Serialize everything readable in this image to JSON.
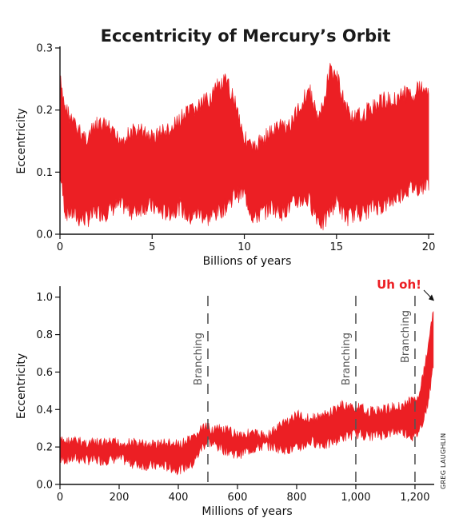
{
  "colors": {
    "series": "#ec1f24",
    "axis": "#111111",
    "marker": "#555555",
    "text": "#1a1a1a"
  },
  "credit": "GREG LAUGHLIN",
  "chart_data": [
    {
      "type": "area",
      "title": "Eccentricity of Mercury’s Orbit",
      "xlabel": "Billions of years",
      "ylabel": "Eccentricity",
      "xlim": [
        0,
        20.3
      ],
      "ylim": [
        0,
        0.3
      ],
      "xticks": [
        0,
        5,
        10,
        15,
        20
      ],
      "xtick_labels": [
        "0",
        "5",
        "10",
        "15",
        "20"
      ],
      "yticks": [
        0,
        0.1,
        0.2,
        0.3
      ],
      "ytick_labels": [
        "0.0",
        "0.1",
        "0.2",
        "0.3"
      ],
      "grid": false,
      "series": [
        {
          "x": [
            0,
            0.1,
            0.3,
            0.6,
            1,
            1.5,
            2,
            2.5,
            3,
            3.5,
            4,
            4.5,
            5,
            5.5,
            6,
            6.5,
            7,
            7.5,
            8,
            8.5,
            9,
            9.5,
            10,
            10.5,
            11,
            11.5,
            12,
            12.5,
            13,
            13.5,
            14,
            14.3,
            14.6,
            15,
            15.5,
            16,
            16.5,
            17,
            17.5,
            18,
            18.5,
            19,
            19.5,
            20
          ],
          "upper": [
            0.27,
            0.24,
            0.22,
            0.2,
            0.18,
            0.17,
            0.19,
            0.19,
            0.17,
            0.17,
            0.18,
            0.18,
            0.17,
            0.18,
            0.18,
            0.2,
            0.21,
            0.22,
            0.23,
            0.25,
            0.26,
            0.23,
            0.17,
            0.15,
            0.17,
            0.18,
            0.19,
            0.19,
            0.22,
            0.25,
            0.2,
            0.22,
            0.28,
            0.27,
            0.22,
            0.2,
            0.21,
            0.22,
            0.23,
            0.23,
            0.24,
            0.24,
            0.25,
            0.25
          ],
          "lower": [
            0.09,
            0.06,
            0.02,
            0.02,
            0.01,
            0.01,
            0.02,
            0.02,
            0.03,
            0.03,
            0.02,
            0.03,
            0.03,
            0.02,
            0.02,
            0.03,
            0.01,
            0.02,
            0.01,
            0.02,
            0.03,
            0.05,
            0.05,
            0.01,
            0.02,
            0.03,
            0.02,
            0.03,
            0.04,
            0.04,
            0.01,
            0.0,
            0.02,
            0.04,
            0.01,
            0.02,
            0.02,
            0.03,
            0.03,
            0.04,
            0.05,
            0.06,
            0.06,
            0.07
          ]
        }
      ]
    },
    {
      "type": "area",
      "title": "",
      "xlabel": "Millions of years",
      "ylabel": "Eccentricity",
      "xlim": [
        0,
        1265
      ],
      "ylim": [
        0,
        1.05
      ],
      "xticks": [
        0,
        200,
        400,
        600,
        800,
        1000,
        1200
      ],
      "xtick_labels": [
        "0",
        "200",
        "400",
        "600",
        "800",
        "1,000",
        "1,200"
      ],
      "yticks": [
        0,
        0.2,
        0.4,
        0.6,
        0.8,
        1.0
      ],
      "ytick_labels": [
        "0.0",
        "0.2",
        "0.4",
        "0.6",
        "0.8",
        "1.0"
      ],
      "grid": false,
      "series": [
        {
          "x": [
            0,
            50,
            100,
            150,
            200,
            250,
            300,
            350,
            400,
            450,
            480,
            500,
            550,
            600,
            650,
            700,
            750,
            800,
            850,
            900,
            950,
            1000,
            1050,
            1100,
            1150,
            1200,
            1220,
            1240,
            1255,
            1262
          ],
          "upper": [
            0.26,
            0.26,
            0.25,
            0.25,
            0.25,
            0.25,
            0.24,
            0.25,
            0.24,
            0.27,
            0.33,
            0.33,
            0.32,
            0.3,
            0.3,
            0.29,
            0.35,
            0.4,
            0.38,
            0.4,
            0.45,
            0.44,
            0.42,
            0.43,
            0.45,
            0.48,
            0.55,
            0.72,
            0.9,
            0.97
          ],
          "lower": [
            0.1,
            0.11,
            0.1,
            0.1,
            0.11,
            0.08,
            0.07,
            0.07,
            0.05,
            0.08,
            0.17,
            0.2,
            0.16,
            0.13,
            0.16,
            0.18,
            0.16,
            0.16,
            0.2,
            0.18,
            0.22,
            0.24,
            0.23,
            0.24,
            0.26,
            0.22,
            0.28,
            0.38,
            0.52,
            0.62
          ]
        }
      ],
      "annotations": {
        "branching_label": "Branching",
        "branching_x": [
          500,
          1000,
          1200
        ],
        "warning_text": "Uh oh!",
        "warning_point": [
          1265,
          0.98
        ]
      }
    }
  ]
}
